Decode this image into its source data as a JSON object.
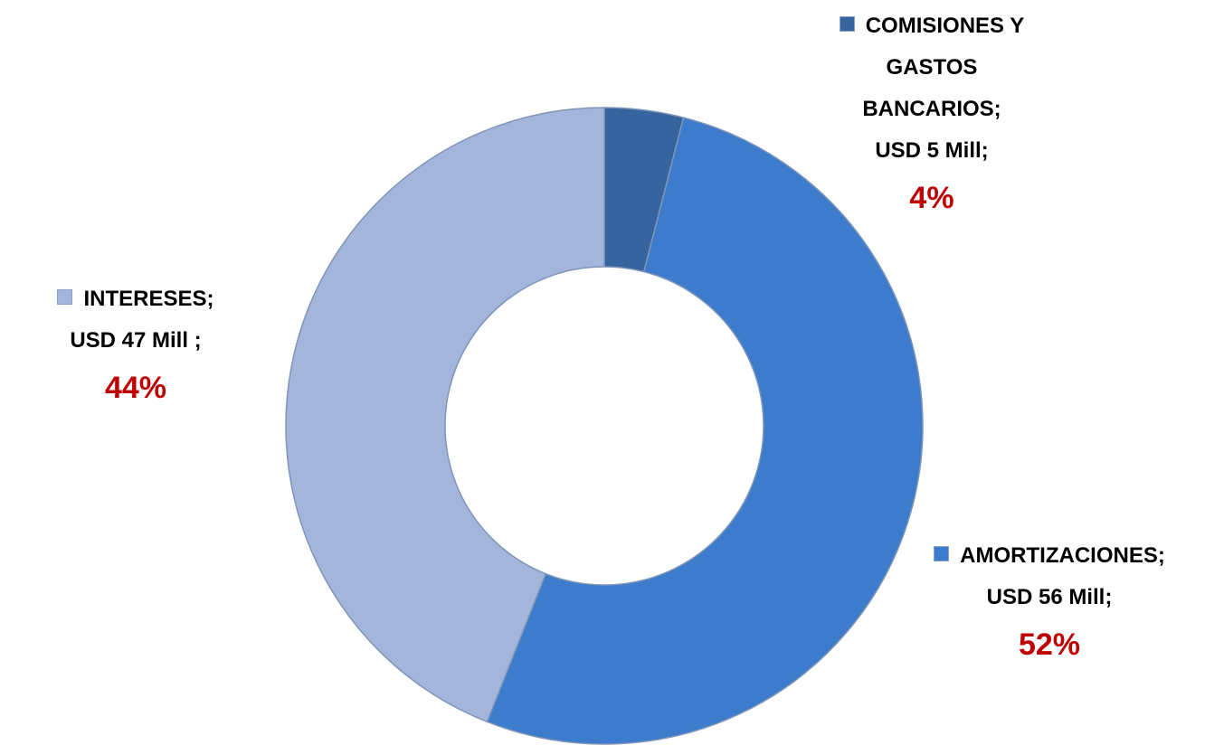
{
  "chart_data": {
    "type": "donut",
    "categories": [
      "COMISIONES Y GASTOS BANCARIOS;",
      "AMORTIZACIONES;",
      "INTERESES;"
    ],
    "amount_labels": [
      "USD 5 Mill;",
      "USD 56 Mill;",
      "USD 47 Mill ;"
    ],
    "values": [
      4,
      52,
      44
    ],
    "value_labels": [
      "4%",
      "52%",
      "44%"
    ],
    "colors": [
      "#36649e",
      "#3d7ccc",
      "#a3b5db"
    ]
  }
}
